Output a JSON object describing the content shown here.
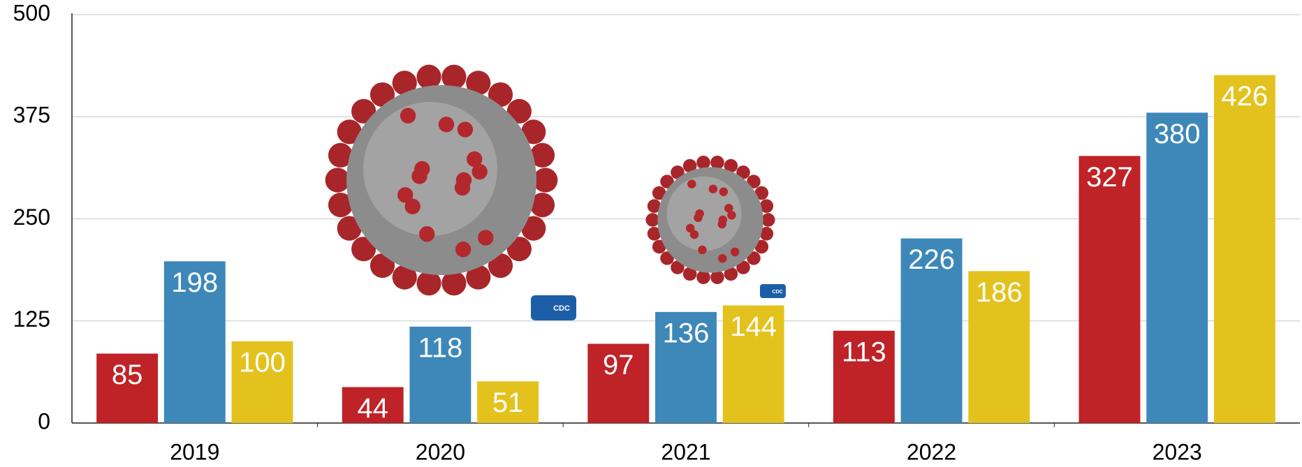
{
  "chart_data": {
    "type": "grouped_bar",
    "categories": [
      "2019",
      "2020",
      "2021",
      "2022",
      "2023"
    ],
    "series": [
      {
        "color": "#bf2227",
        "values": [
          85,
          44,
          97,
          113,
          327
        ]
      },
      {
        "color": "#3d88b9",
        "values": [
          198,
          118,
          136,
          226,
          380
        ]
      },
      {
        "color": "#e4c21e",
        "values": [
          100,
          51,
          144,
          186,
          426
        ]
      }
    ],
    "ylim": [
      0,
      500
    ],
    "yticks": [
      0,
      125,
      250,
      375,
      500
    ],
    "grid": true,
    "annotations": [
      "CDC",
      "CDC"
    ]
  }
}
